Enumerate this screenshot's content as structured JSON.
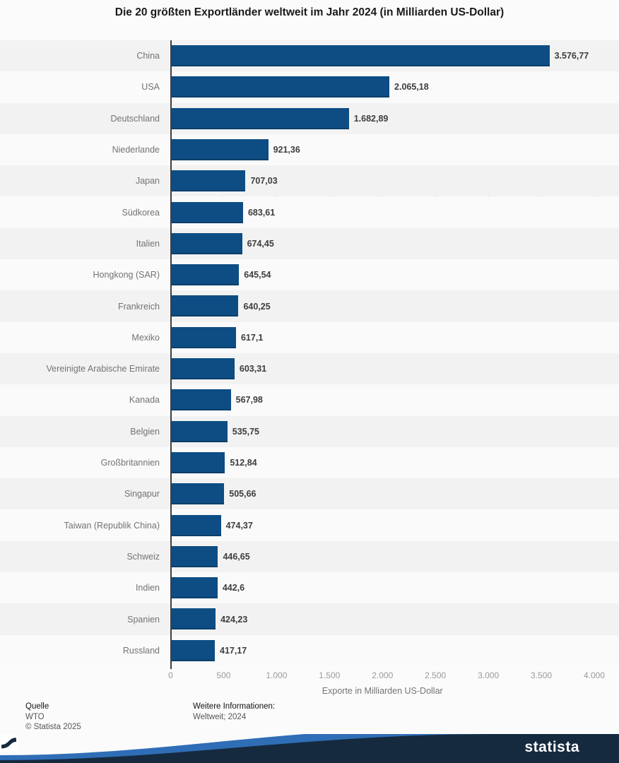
{
  "chart_data": {
    "type": "bar",
    "orientation": "horizontal",
    "title": "Die 20 größten Exportländer weltweit im Jahr 2024 (in Milliarden US-Dollar)",
    "categories": [
      "China",
      "USA",
      "Deutschland",
      "Niederlande",
      "Japan",
      "Südkorea",
      "Italien",
      "Hongkong (SAR)",
      "Frankreich",
      "Mexiko",
      "Vereinigte Arabische Emirate",
      "Kanada",
      "Belgien",
      "Großbritannien",
      "Singapur",
      "Taiwan (Republik China)",
      "Schweiz",
      "Indien",
      "Spanien",
      "Russland"
    ],
    "values": [
      3576.77,
      2065.18,
      1682.89,
      921.36,
      707.03,
      683.61,
      674.45,
      645.54,
      640.25,
      617.1,
      603.31,
      567.98,
      535.75,
      512.84,
      505.66,
      474.37,
      446.65,
      442.6,
      424.23,
      417.17
    ],
    "value_labels": [
      "3.576,77",
      "2.065,18",
      "1.682,89",
      "921,36",
      "707,03",
      "683,61",
      "674,45",
      "645,54",
      "640,25",
      "617,1",
      "603,31",
      "567,98",
      "535,75",
      "512,84",
      "505,66",
      "474,37",
      "446,65",
      "442,6",
      "424,23",
      "417,17"
    ],
    "xlabel": "Exporte in Milliarden US-Dollar",
    "xlim": [
      0,
      4000
    ],
    "x_ticks": [
      "0",
      "500",
      "1.000",
      "1.500",
      "2.000",
      "2.500",
      "3.000",
      "3.500",
      "4.000"
    ],
    "grid": "vertical-dotted",
    "legend": "none",
    "bar_color": "#0d4d83",
    "row_stripe_colors": [
      "#f2f2f2",
      "#fafafa"
    ]
  },
  "footer": {
    "source_label": "Quelle",
    "source": "WTO",
    "copyright": "© Statista 2025",
    "info_label": "Weitere Informationen:",
    "info_value": "Weltweit; 2024"
  },
  "branding": {
    "logo_text": "statista",
    "navy": "#152a3e",
    "wave_blue": "#2f6eb6"
  }
}
